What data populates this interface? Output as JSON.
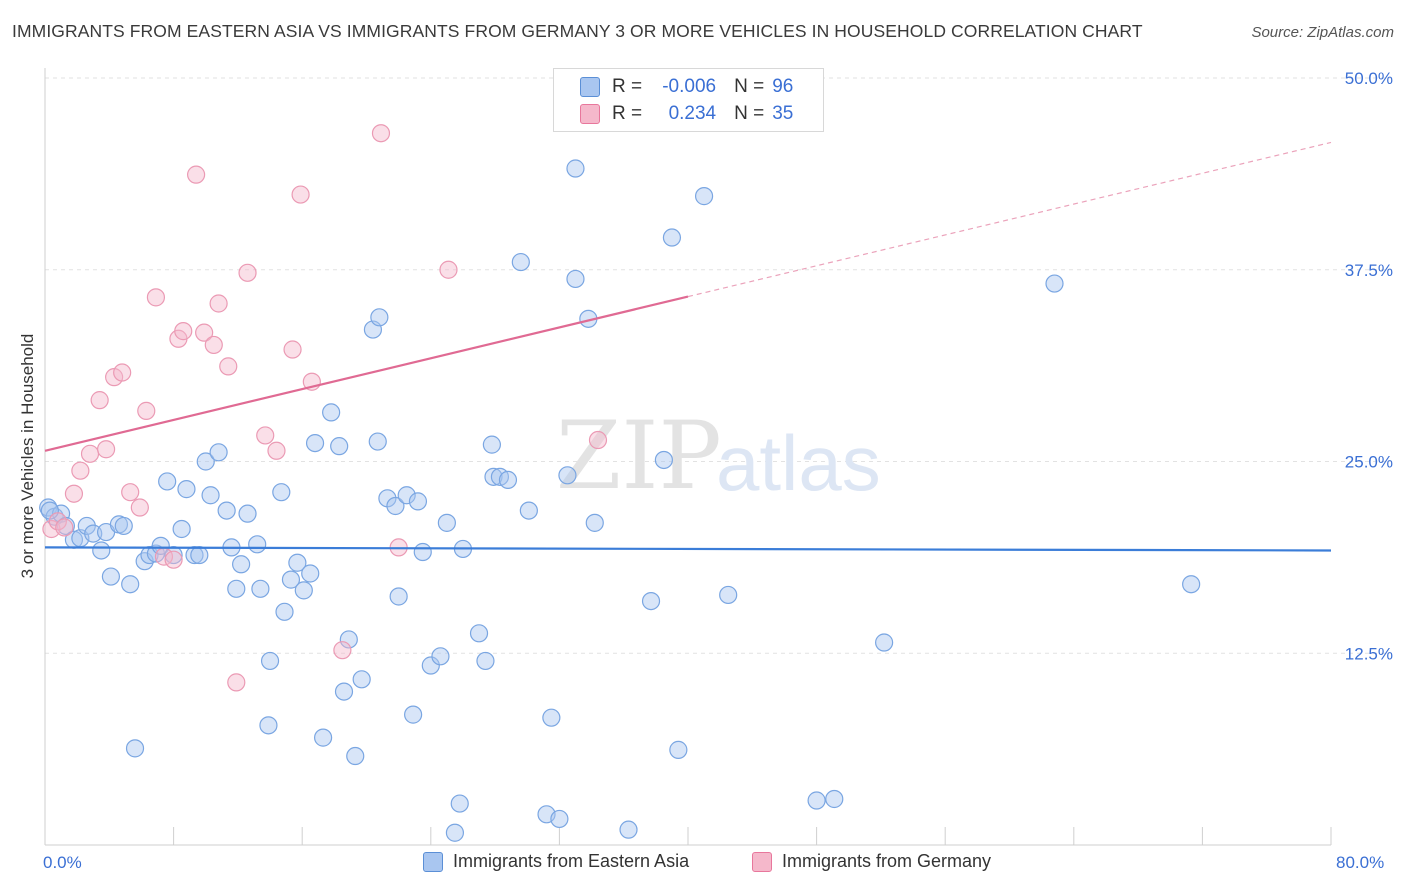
{
  "title": "IMMIGRANTS FROM EASTERN ASIA VS IMMIGRANTS FROM GERMANY 3 OR MORE VEHICLES IN HOUSEHOLD CORRELATION CHART",
  "source": "Source: ZipAtlas.com",
  "watermark": {
    "zip": "ZIP",
    "atlas": "atlas"
  },
  "legend": {
    "series1": {
      "r_label": "R =",
      "r_value": "-0.006",
      "n_label": "N =",
      "n_value": "96"
    },
    "series2": {
      "r_label": "R =",
      "r_value": "0.234",
      "n_label": "N =",
      "n_value": "35"
    }
  },
  "colors": {
    "blue": "#5b8fd6",
    "blue_fill": "#a9c6f0",
    "pink": "#e8779c",
    "pink_fill": "#f5b8cb",
    "axis_text": "#3a6fd4"
  },
  "chart_data": {
    "type": "scatter",
    "title": "IMMIGRANTS FROM EASTERN ASIA VS IMMIGRANTS FROM GERMANY 3 OR MORE VEHICLES IN HOUSEHOLD CORRELATION CHART",
    "ylabel": "3 or more Vehicles in Household",
    "xlim": [
      0,
      80
    ],
    "ylim": [
      0,
      50
    ],
    "x_tick_labels": [
      "0.0%",
      "80.0%"
    ],
    "y_ticks": [
      12.5,
      25.0,
      37.5,
      50.0
    ],
    "y_tick_labels": [
      "12.5%",
      "25.0%",
      "37.5%",
      "50.0%"
    ],
    "grid": "horizontal dashed",
    "legend_position": "bottom",
    "series": [
      {
        "name": "Immigrants from Eastern Asia",
        "color": "#5b8fd6",
        "trend": {
          "x": [
            0,
            80
          ],
          "y": [
            19.4,
            19.2
          ]
        },
        "points": [
          [
            0.2,
            22.0
          ],
          [
            0.6,
            21.4
          ],
          [
            1.0,
            21.6
          ],
          [
            1.3,
            20.8
          ],
          [
            1.8,
            19.9
          ],
          [
            2.2,
            20.0
          ],
          [
            2.6,
            20.8
          ],
          [
            3.0,
            20.3
          ],
          [
            3.5,
            19.2
          ],
          [
            3.8,
            20.4
          ],
          [
            4.1,
            17.5
          ],
          [
            4.6,
            20.9
          ],
          [
            4.9,
            20.8
          ],
          [
            5.3,
            17.0
          ],
          [
            5.6,
            6.3
          ],
          [
            6.2,
            18.5
          ],
          [
            6.5,
            18.9
          ],
          [
            6.9,
            19.0
          ],
          [
            7.2,
            19.5
          ],
          [
            7.6,
            23.7
          ],
          [
            8.0,
            18.9
          ],
          [
            8.5,
            20.6
          ],
          [
            8.8,
            23.2
          ],
          [
            9.3,
            18.9
          ],
          [
            9.6,
            18.9
          ],
          [
            10.0,
            25.0
          ],
          [
            10.3,
            22.8
          ],
          [
            10.8,
            25.6
          ],
          [
            11.3,
            21.8
          ],
          [
            11.6,
            19.4
          ],
          [
            11.9,
            16.7
          ],
          [
            12.2,
            18.3
          ],
          [
            12.6,
            21.6
          ],
          [
            13.2,
            19.6
          ],
          [
            13.4,
            16.7
          ],
          [
            14.0,
            12.0
          ],
          [
            13.9,
            7.8
          ],
          [
            14.7,
            23.0
          ],
          [
            14.9,
            15.2
          ],
          [
            15.3,
            17.3
          ],
          [
            15.7,
            18.4
          ],
          [
            16.1,
            16.6
          ],
          [
            16.5,
            17.7
          ],
          [
            16.8,
            26.2
          ],
          [
            17.3,
            7.0
          ],
          [
            17.8,
            28.2
          ],
          [
            18.3,
            26.0
          ],
          [
            18.6,
            10.0
          ],
          [
            18.9,
            13.4
          ],
          [
            19.3,
            5.8
          ],
          [
            19.7,
            10.8
          ],
          [
            20.4,
            33.6
          ],
          [
            20.8,
            34.4
          ],
          [
            20.7,
            26.3
          ],
          [
            21.3,
            22.6
          ],
          [
            21.8,
            22.1
          ],
          [
            22.0,
            16.2
          ],
          [
            22.5,
            22.8
          ],
          [
            22.9,
            8.5
          ],
          [
            23.2,
            22.4
          ],
          [
            23.5,
            19.1
          ],
          [
            24.0,
            11.7
          ],
          [
            24.6,
            12.3
          ],
          [
            25.0,
            21.0
          ],
          [
            25.5,
            0.8
          ],
          [
            25.8,
            2.7
          ],
          [
            26.0,
            19.3
          ],
          [
            27.0,
            13.8
          ],
          [
            27.4,
            12.0
          ],
          [
            27.8,
            26.1
          ],
          [
            27.9,
            24.0
          ],
          [
            28.3,
            24.0
          ],
          [
            28.8,
            23.8
          ],
          [
            29.6,
            38.0
          ],
          [
            30.1,
            21.8
          ],
          [
            31.2,
            2.0
          ],
          [
            31.5,
            8.3
          ],
          [
            32.0,
            1.7
          ],
          [
            32.5,
            24.1
          ],
          [
            33.0,
            36.9
          ],
          [
            33.8,
            34.3
          ],
          [
            34.2,
            21.0
          ],
          [
            36.3,
            1.0
          ],
          [
            37.7,
            15.9
          ],
          [
            38.5,
            25.1
          ],
          [
            39.0,
            39.6
          ],
          [
            39.4,
            6.2
          ],
          [
            41.0,
            42.3
          ],
          [
            42.5,
            16.3
          ],
          [
            48.0,
            2.9
          ],
          [
            49.1,
            3.0
          ],
          [
            52.2,
            13.2
          ],
          [
            62.8,
            36.6
          ],
          [
            71.3,
            17.0
          ],
          [
            0.3,
            21.8
          ],
          [
            33.0,
            44.1
          ]
        ]
      },
      {
        "name": "Immigrants from Germany",
        "color": "#e8779c",
        "trend": {
          "x": [
            0,
            80
          ],
          "y": [
            25.7,
            45.8
          ]
        },
        "trend_solid_to_x": 40,
        "points": [
          [
            0.4,
            20.6
          ],
          [
            0.8,
            21.1
          ],
          [
            1.2,
            20.7
          ],
          [
            1.8,
            22.9
          ],
          [
            2.2,
            24.4
          ],
          [
            2.8,
            25.5
          ],
          [
            3.4,
            29.0
          ],
          [
            3.8,
            25.8
          ],
          [
            4.3,
            30.5
          ],
          [
            4.8,
            30.8
          ],
          [
            5.3,
            23.0
          ],
          [
            5.9,
            22.0
          ],
          [
            6.3,
            28.3
          ],
          [
            6.9,
            35.7
          ],
          [
            7.4,
            18.8
          ],
          [
            8.0,
            18.6
          ],
          [
            8.3,
            33.0
          ],
          [
            8.6,
            33.5
          ],
          [
            9.4,
            43.7
          ],
          [
            9.9,
            33.4
          ],
          [
            10.5,
            32.6
          ],
          [
            10.8,
            35.3
          ],
          [
            11.4,
            31.2
          ],
          [
            11.9,
            10.6
          ],
          [
            12.6,
            37.3
          ],
          [
            13.7,
            26.7
          ],
          [
            14.4,
            25.7
          ],
          [
            15.4,
            32.3
          ],
          [
            15.9,
            42.4
          ],
          [
            16.6,
            30.2
          ],
          [
            18.5,
            12.7
          ],
          [
            20.9,
            46.4
          ],
          [
            22.0,
            19.4
          ],
          [
            25.1,
            37.5
          ],
          [
            34.4,
            26.4
          ]
        ]
      }
    ]
  },
  "bottom_legend": {
    "series1": "Immigrants from Eastern Asia",
    "series2": "Immigrants from Germany"
  }
}
